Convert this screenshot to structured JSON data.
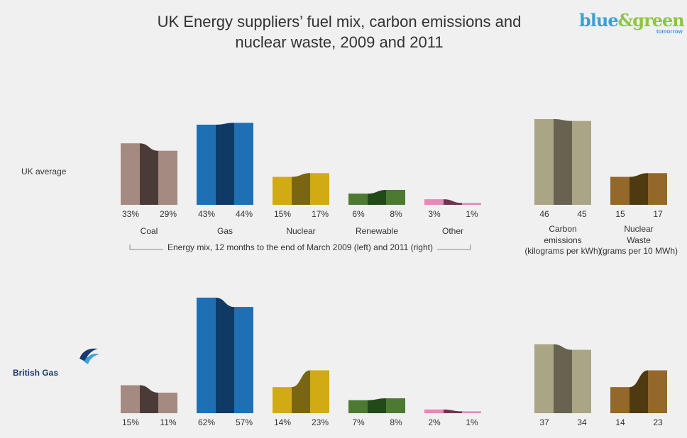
{
  "chart_data": {
    "type": "slope-bar",
    "title": "UK Energy suppliers’ fuel mix, carbon emissions and nuclear waste, 2009 and 2011",
    "logo": [
      "blue",
      "&green",
      "tomorrow"
    ],
    "categories": [
      "Coal",
      "Gas",
      "Nuclear",
      "Renewable",
      "Other"
    ],
    "colors": [
      [
        "#a48a80",
        "#4a3b38"
      ],
      [
        "#1f6fb4",
        "#0f3a66"
      ],
      [
        "#d1aa14",
        "#7a6510"
      ],
      [
        "#4c7a33",
        "#224a18"
      ],
      [
        "#e08bb8",
        "#6e3550"
      ]
    ],
    "caption": "Energy mix, 12 months to the end of March 2009 (left) and 2011 (right)",
    "measures": [
      {
        "name": "Carbon emissions",
        "unit": "(kilograms per kWh)",
        "colors": [
          "#aaa685",
          "#676350"
        ]
      },
      {
        "name": "Nuclear Waste",
        "unit": "(grams per 10 MWh)",
        "colors": [
          "#93682a",
          "#4e3a10"
        ]
      }
    ],
    "rows": [
      {
        "label": "UK average",
        "mix": [
          {
            "values": [
              33,
              29
            ],
            "value_labels": [
              "33%",
              "29%"
            ]
          },
          {
            "values": [
              43,
              44
            ],
            "value_labels": [
              "43%",
              "44%"
            ]
          },
          {
            "values": [
              15,
              17
            ],
            "value_labels": [
              "15%",
              "17%"
            ]
          },
          {
            "values": [
              6,
              8
            ],
            "value_labels": [
              "6%",
              "8%"
            ]
          },
          {
            "values": [
              3,
              1
            ],
            "value_labels": [
              "3%",
              "1%"
            ]
          }
        ],
        "measures": [
          {
            "values": [
              46,
              45
            ]
          },
          {
            "values": [
              15,
              17
            ]
          }
        ]
      },
      {
        "label": "British Gas",
        "mix": [
          {
            "values": [
              15,
              11
            ],
            "value_labels": [
              "15%",
              "11%"
            ]
          },
          {
            "values": [
              62,
              57
            ],
            "value_labels": [
              "62%",
              "57%"
            ]
          },
          {
            "values": [
              14,
              23
            ],
            "value_labels": [
              "14%",
              "23%"
            ]
          },
          {
            "values": [
              7,
              8
            ],
            "value_labels": [
              "7%",
              "8%"
            ]
          },
          {
            "values": [
              2,
              1
            ],
            "value_labels": [
              "2%",
              "1%"
            ]
          }
        ],
        "measures": [
          {
            "values": [
              37,
              34
            ]
          },
          {
            "values": [
              14,
              23
            ]
          }
        ]
      }
    ]
  }
}
